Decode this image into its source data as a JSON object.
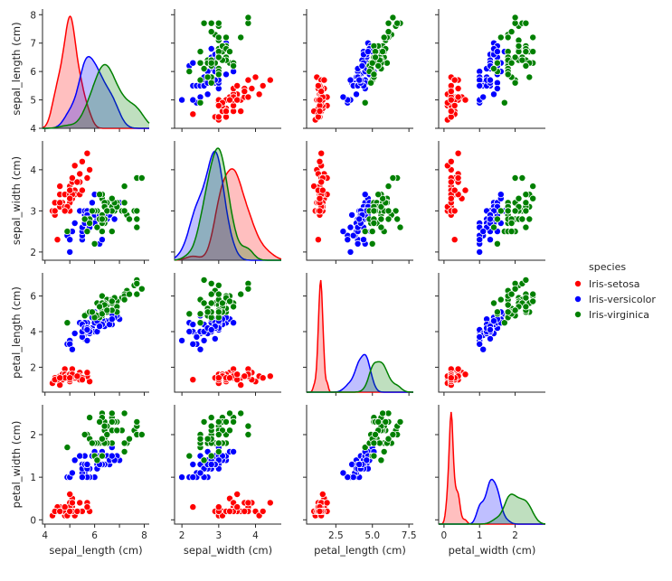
{
  "chart_data": {
    "type": "scatter",
    "variables": [
      {
        "key": "sepal_length",
        "label": "sepal_length (cm)",
        "ticks": [
          4,
          5,
          6,
          7,
          8
        ],
        "tick_labels": [
          "4",
          "6",
          "8"
        ],
        "range": [
          3.9,
          8.2
        ]
      },
      {
        "key": "sepal_width",
        "label": "sepal_width (cm)",
        "ticks": [
          2,
          3,
          4
        ],
        "tick_labels": [
          "2",
          "3",
          "4"
        ],
        "range": [
          1.8,
          4.7
        ]
      },
      {
        "key": "petal_length",
        "label": "petal_length (cm)",
        "ticks": [
          2.5,
          5.0,
          7.5
        ],
        "tick_labels": [
          "2.5",
          "5.0",
          "7.5"
        ],
        "range": [
          0.5,
          7.8
        ]
      },
      {
        "key": "petal_width",
        "label": "petal_width (cm)",
        "ticks": [
          0,
          1,
          2
        ],
        "tick_labels": [
          "0",
          "1",
          "2"
        ],
        "range": [
          -0.15,
          2.85
        ]
      }
    ],
    "y_ticks": {
      "sepal_length": {
        "values": [
          4,
          5,
          6,
          7,
          8
        ],
        "labels": [
          "4",
          "5",
          "6",
          "7",
          "8"
        ],
        "range": [
          4.0,
          8.2
        ]
      },
      "sepal_width": {
        "values": [
          2,
          3,
          4
        ],
        "labels": [
          "2",
          "3",
          "4"
        ],
        "range": [
          1.8,
          4.7
        ]
      },
      "petal_length": {
        "values": [
          2,
          4,
          6
        ],
        "labels": [
          "2",
          "4",
          "6"
        ],
        "range": [
          0.6,
          7.3
        ]
      },
      "petal_width": {
        "values": [
          0,
          1,
          2
        ],
        "labels": [
          "0",
          "1",
          "2"
        ],
        "range": [
          -0.1,
          2.7
        ]
      }
    },
    "legend": {
      "title": "species",
      "position": "right"
    },
    "series": [
      {
        "name": "Iris-setosa",
        "color": "#ff0000",
        "values": [
          [
            5.1,
            3.5,
            1.4,
            0.2
          ],
          [
            4.9,
            3.0,
            1.4,
            0.2
          ],
          [
            4.7,
            3.2,
            1.3,
            0.2
          ],
          [
            4.6,
            3.1,
            1.5,
            0.2
          ],
          [
            5.0,
            3.6,
            1.4,
            0.2
          ],
          [
            5.4,
            3.9,
            1.7,
            0.4
          ],
          [
            4.6,
            3.4,
            1.4,
            0.3
          ],
          [
            5.0,
            3.4,
            1.5,
            0.2
          ],
          [
            4.4,
            2.9,
            1.4,
            0.2
          ],
          [
            4.9,
            3.1,
            1.5,
            0.1
          ],
          [
            5.4,
            3.7,
            1.5,
            0.2
          ],
          [
            4.8,
            3.4,
            1.6,
            0.2
          ],
          [
            4.8,
            3.0,
            1.4,
            0.1
          ],
          [
            4.3,
            3.0,
            1.1,
            0.1
          ],
          [
            5.8,
            4.0,
            1.2,
            0.2
          ],
          [
            5.7,
            4.4,
            1.5,
            0.4
          ],
          [
            5.4,
            3.9,
            1.3,
            0.4
          ],
          [
            5.1,
            3.5,
            1.4,
            0.3
          ],
          [
            5.7,
            3.8,
            1.7,
            0.3
          ],
          [
            5.1,
            3.8,
            1.5,
            0.3
          ],
          [
            5.4,
            3.4,
            1.7,
            0.2
          ],
          [
            5.1,
            3.7,
            1.5,
            0.4
          ],
          [
            4.6,
            3.6,
            1.0,
            0.2
          ],
          [
            5.1,
            3.3,
            1.7,
            0.5
          ],
          [
            4.8,
            3.4,
            1.9,
            0.2
          ],
          [
            5.0,
            3.0,
            1.6,
            0.2
          ],
          [
            5.0,
            3.4,
            1.6,
            0.4
          ],
          [
            5.2,
            3.5,
            1.5,
            0.2
          ],
          [
            5.2,
            3.4,
            1.4,
            0.2
          ],
          [
            4.7,
            3.2,
            1.6,
            0.2
          ],
          [
            4.8,
            3.1,
            1.6,
            0.2
          ],
          [
            5.4,
            3.4,
            1.5,
            0.4
          ],
          [
            5.2,
            4.1,
            1.5,
            0.1
          ],
          [
            5.5,
            4.2,
            1.4,
            0.2
          ],
          [
            4.9,
            3.1,
            1.5,
            0.1
          ],
          [
            5.0,
            3.2,
            1.2,
            0.2
          ],
          [
            5.5,
            3.5,
            1.3,
            0.2
          ],
          [
            4.9,
            3.1,
            1.5,
            0.1
          ],
          [
            4.4,
            3.0,
            1.3,
            0.2
          ],
          [
            5.1,
            3.4,
            1.5,
            0.2
          ],
          [
            5.0,
            3.5,
            1.3,
            0.3
          ],
          [
            4.5,
            2.3,
            1.3,
            0.3
          ],
          [
            4.4,
            3.2,
            1.3,
            0.2
          ],
          [
            5.0,
            3.5,
            1.6,
            0.6
          ],
          [
            5.1,
            3.8,
            1.9,
            0.4
          ],
          [
            4.8,
            3.0,
            1.4,
            0.3
          ],
          [
            5.1,
            3.8,
            1.6,
            0.2
          ],
          [
            4.6,
            3.2,
            1.4,
            0.2
          ],
          [
            5.3,
            3.7,
            1.5,
            0.2
          ],
          [
            5.0,
            3.3,
            1.4,
            0.2
          ]
        ]
      },
      {
        "name": "Iris-versicolor",
        "color": "#0000ff",
        "values": [
          [
            7.0,
            3.2,
            4.7,
            1.4
          ],
          [
            6.4,
            3.2,
            4.5,
            1.5
          ],
          [
            6.9,
            3.1,
            4.9,
            1.5
          ],
          [
            5.5,
            2.3,
            4.0,
            1.3
          ],
          [
            6.5,
            2.8,
            4.6,
            1.5
          ],
          [
            5.7,
            2.8,
            4.5,
            1.3
          ],
          [
            6.3,
            3.3,
            4.7,
            1.6
          ],
          [
            4.9,
            2.4,
            3.3,
            1.0
          ],
          [
            6.6,
            2.9,
            4.6,
            1.3
          ],
          [
            5.2,
            2.7,
            3.9,
            1.4
          ],
          [
            5.0,
            2.0,
            3.5,
            1.0
          ],
          [
            5.9,
            3.0,
            4.2,
            1.5
          ],
          [
            6.0,
            2.2,
            4.0,
            1.0
          ],
          [
            6.1,
            2.9,
            4.7,
            1.4
          ],
          [
            5.6,
            2.9,
            3.6,
            1.3
          ],
          [
            6.7,
            3.1,
            4.4,
            1.4
          ],
          [
            5.6,
            3.0,
            4.5,
            1.5
          ],
          [
            5.8,
            2.7,
            4.1,
            1.0
          ],
          [
            6.2,
            2.2,
            4.5,
            1.5
          ],
          [
            5.6,
            2.5,
            3.9,
            1.1
          ],
          [
            5.9,
            3.2,
            4.8,
            1.8
          ],
          [
            6.1,
            2.8,
            4.0,
            1.3
          ],
          [
            6.3,
            2.5,
            4.9,
            1.5
          ],
          [
            6.1,
            2.8,
            4.7,
            1.2
          ],
          [
            6.4,
            2.9,
            4.3,
            1.3
          ],
          [
            6.6,
            3.0,
            4.4,
            1.4
          ],
          [
            6.8,
            2.8,
            4.8,
            1.4
          ],
          [
            6.7,
            3.0,
            5.0,
            1.7
          ],
          [
            6.0,
            2.9,
            4.5,
            1.5
          ],
          [
            5.7,
            2.6,
            3.5,
            1.0
          ],
          [
            5.5,
            2.4,
            3.8,
            1.1
          ],
          [
            5.5,
            2.4,
            3.7,
            1.0
          ],
          [
            5.8,
            2.7,
            3.9,
            1.2
          ],
          [
            6.0,
            2.7,
            5.1,
            1.6
          ],
          [
            5.4,
            3.0,
            4.5,
            1.5
          ],
          [
            6.0,
            3.4,
            4.5,
            1.6
          ],
          [
            6.7,
            3.1,
            4.7,
            1.5
          ],
          [
            6.3,
            2.3,
            4.4,
            1.3
          ],
          [
            5.6,
            3.0,
            4.1,
            1.3
          ],
          [
            5.5,
            2.5,
            4.0,
            1.3
          ],
          [
            5.5,
            2.6,
            4.4,
            1.2
          ],
          [
            6.1,
            3.0,
            4.6,
            1.4
          ],
          [
            5.8,
            2.6,
            4.0,
            1.2
          ],
          [
            5.0,
            2.3,
            3.3,
            1.0
          ],
          [
            5.6,
            2.7,
            4.2,
            1.3
          ],
          [
            5.7,
            3.0,
            4.2,
            1.2
          ],
          [
            5.7,
            2.9,
            4.2,
            1.3
          ],
          [
            6.2,
            2.9,
            4.3,
            1.3
          ],
          [
            5.1,
            2.5,
            3.0,
            1.1
          ],
          [
            5.7,
            2.8,
            4.1,
            1.3
          ]
        ]
      },
      {
        "name": "Iris-virginica",
        "color": "#008000",
        "values": [
          [
            6.3,
            3.3,
            6.0,
            2.5
          ],
          [
            5.8,
            2.7,
            5.1,
            1.9
          ],
          [
            7.1,
            3.0,
            5.9,
            2.1
          ],
          [
            6.3,
            2.9,
            5.6,
            1.8
          ],
          [
            6.5,
            3.0,
            5.8,
            2.2
          ],
          [
            7.6,
            3.0,
            6.6,
            2.1
          ],
          [
            4.9,
            2.5,
            4.5,
            1.7
          ],
          [
            7.3,
            2.9,
            6.3,
            1.8
          ],
          [
            6.7,
            2.5,
            5.8,
            1.8
          ],
          [
            7.2,
            3.6,
            6.1,
            2.5
          ],
          [
            6.5,
            3.2,
            5.1,
            2.0
          ],
          [
            6.4,
            2.7,
            5.3,
            1.9
          ],
          [
            6.8,
            3.0,
            5.5,
            2.1
          ],
          [
            5.7,
            2.5,
            5.0,
            2.0
          ],
          [
            5.8,
            2.8,
            5.1,
            2.4
          ],
          [
            6.4,
            3.2,
            5.3,
            2.3
          ],
          [
            6.5,
            3.0,
            5.5,
            1.8
          ],
          [
            7.7,
            3.8,
            6.7,
            2.2
          ],
          [
            7.7,
            2.6,
            6.9,
            2.3
          ],
          [
            6.0,
            2.2,
            5.0,
            1.5
          ],
          [
            6.9,
            3.2,
            5.7,
            2.3
          ],
          [
            5.6,
            2.8,
            4.9,
            2.0
          ],
          [
            7.7,
            2.8,
            6.7,
            2.0
          ],
          [
            6.3,
            2.7,
            4.9,
            1.8
          ],
          [
            6.7,
            3.3,
            5.7,
            2.1
          ],
          [
            7.2,
            3.2,
            6.0,
            1.8
          ],
          [
            6.2,
            2.8,
            4.8,
            1.8
          ],
          [
            6.1,
            3.0,
            4.9,
            1.8
          ],
          [
            6.4,
            2.8,
            5.6,
            2.1
          ],
          [
            7.2,
            3.0,
            5.8,
            1.6
          ],
          [
            7.4,
            2.8,
            6.1,
            1.9
          ],
          [
            7.9,
            3.8,
            6.4,
            2.0
          ],
          [
            6.4,
            2.8,
            5.6,
            2.2
          ],
          [
            6.3,
            2.8,
            5.1,
            1.5
          ],
          [
            6.1,
            2.6,
            5.6,
            1.4
          ],
          [
            7.7,
            3.0,
            6.1,
            2.3
          ],
          [
            6.3,
            3.4,
            5.6,
            2.4
          ],
          [
            6.4,
            3.1,
            5.5,
            1.8
          ],
          [
            6.0,
            3.0,
            4.8,
            1.8
          ],
          [
            6.9,
            3.1,
            5.4,
            2.1
          ],
          [
            6.7,
            3.1,
            5.6,
            2.4
          ],
          [
            6.9,
            3.1,
            5.1,
            2.3
          ],
          [
            5.8,
            2.7,
            5.1,
            1.9
          ],
          [
            6.8,
            3.2,
            5.9,
            2.3
          ],
          [
            6.7,
            3.3,
            5.7,
            2.5
          ],
          [
            6.7,
            3.0,
            5.2,
            2.3
          ],
          [
            6.3,
            2.5,
            5.0,
            1.9
          ],
          [
            6.5,
            3.0,
            5.2,
            2.0
          ],
          [
            6.2,
            3.4,
            5.4,
            2.3
          ],
          [
            5.9,
            3.0,
            5.1,
            1.8
          ]
        ]
      }
    ]
  }
}
